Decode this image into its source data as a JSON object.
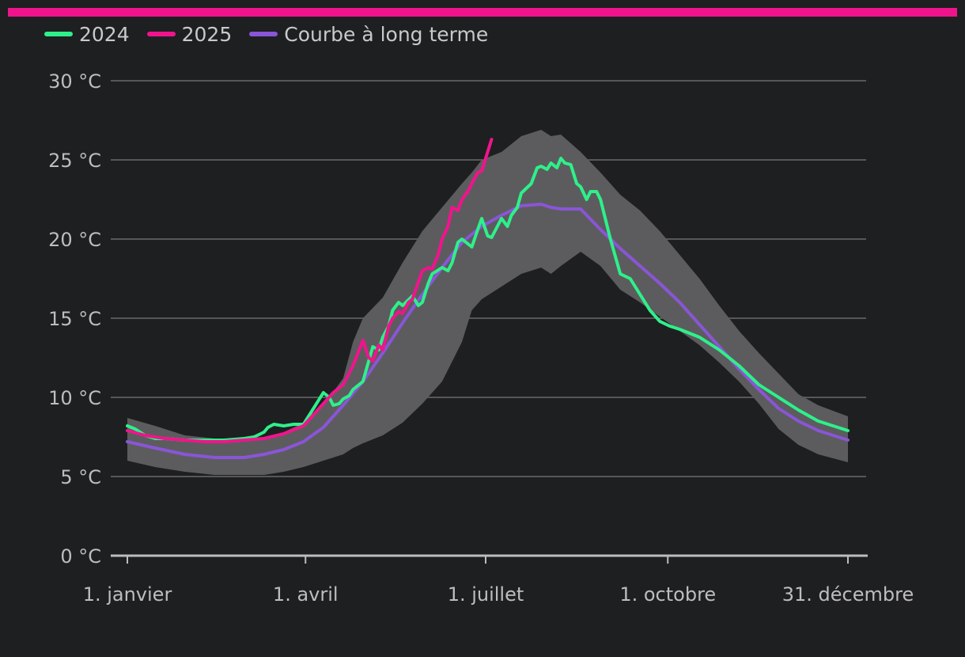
{
  "legend": [
    {
      "label": "2024",
      "color": "#2ef08a"
    },
    {
      "label": "2025",
      "color": "#f0148c"
    },
    {
      "label": "Courbe à long terme",
      "color": "#8a55d6"
    }
  ],
  "colors": {
    "accent": "#f0148c",
    "band": "#5c5c5e",
    "grid": "#6a6a6c",
    "axis": "#bdbdbd"
  },
  "chart_data": {
    "type": "line",
    "x_unit": "day of year",
    "xlim": [
      1,
      365
    ],
    "ylim": [
      0,
      30
    ],
    "y_ticks": [
      0,
      5,
      10,
      15,
      20,
      25,
      30
    ],
    "y_tick_labels": [
      "0 °C",
      "5 °C",
      "10 °C",
      "15 °C",
      "20 °C",
      "25 °C",
      "30 °C"
    ],
    "x_ticks": [
      1,
      91,
      182,
      274,
      365
    ],
    "x_tick_labels": [
      "1. janvier",
      "1. avril",
      "1. juillet",
      "1. octobre",
      "31. décembre"
    ],
    "grid": true,
    "legend_position": "top-left",
    "band": {
      "x": [
        1,
        15,
        30,
        45,
        60,
        70,
        80,
        90,
        100,
        110,
        115,
        120,
        130,
        140,
        150,
        160,
        170,
        175,
        180,
        190,
        200,
        210,
        215,
        220,
        230,
        240,
        250,
        260,
        270,
        280,
        290,
        300,
        310,
        320,
        330,
        340,
        350,
        365
      ],
      "upper": [
        8.7,
        8.2,
        7.6,
        7.4,
        7.4,
        7.5,
        7.8,
        8.4,
        9.5,
        11.2,
        13.5,
        15.0,
        16.3,
        18.5,
        20.5,
        22.0,
        23.5,
        24.2,
        25.0,
        25.5,
        26.5,
        26.9,
        26.5,
        26.6,
        25.5,
        24.2,
        22.8,
        21.8,
        20.5,
        19.0,
        17.5,
        15.8,
        14.2,
        12.8,
        11.5,
        10.2,
        9.5,
        8.8
      ],
      "lower": [
        6.0,
        5.6,
        5.3,
        5.1,
        5.1,
        5.1,
        5.3,
        5.6,
        6.0,
        6.4,
        6.8,
        7.1,
        7.6,
        8.4,
        9.6,
        11.0,
        13.5,
        15.5,
        16.2,
        17.0,
        17.8,
        18.2,
        17.8,
        18.3,
        19.2,
        18.3,
        16.8,
        16.0,
        15.1,
        14.2,
        13.3,
        12.2,
        11.0,
        9.6,
        8.0,
        7.0,
        6.4,
        5.9
      ]
    },
    "series": [
      {
        "name": "2024",
        "color": "#2ef08a",
        "x": [
          1,
          5,
          10,
          15,
          20,
          30,
          40,
          50,
          60,
          65,
          70,
          72,
          75,
          80,
          85,
          90,
          95,
          100,
          103,
          105,
          108,
          110,
          113,
          115,
          118,
          120,
          125,
          128,
          130,
          133,
          135,
          138,
          140,
          145,
          148,
          150,
          153,
          155,
          160,
          163,
          165,
          168,
          170,
          175,
          178,
          180,
          183,
          185,
          190,
          193,
          195,
          198,
          200,
          205,
          208,
          210,
          213,
          215,
          218,
          220,
          222,
          225,
          228,
          230,
          233,
          235,
          238,
          240,
          245,
          250,
          255,
          260,
          265,
          270,
          275,
          280,
          290,
          300,
          310,
          320,
          330,
          340,
          350,
          365
        ],
        "y": [
          8.2,
          8.0,
          7.6,
          7.4,
          7.4,
          7.3,
          7.3,
          7.3,
          7.4,
          7.5,
          7.8,
          8.1,
          8.3,
          8.2,
          8.3,
          8.3,
          9.3,
          10.3,
          10.0,
          9.5,
          9.6,
          9.9,
          10.1,
          10.5,
          10.8,
          11.0,
          13.2,
          13.0,
          13.8,
          14.5,
          15.5,
          16.0,
          15.8,
          16.4,
          15.8,
          16.0,
          17.2,
          17.8,
          18.2,
          18.0,
          18.5,
          19.8,
          20.0,
          19.5,
          20.6,
          21.3,
          20.2,
          20.1,
          21.3,
          20.8,
          21.5,
          22.0,
          22.9,
          23.5,
          24.5,
          24.6,
          24.4,
          24.8,
          24.5,
          25.1,
          24.8,
          24.7,
          23.5,
          23.3,
          22.5,
          23.0,
          23.0,
          22.5,
          20.0,
          17.8,
          17.5,
          16.5,
          15.5,
          14.8,
          14.5,
          14.3,
          13.8,
          13.0,
          12.0,
          10.8,
          10.0,
          9.2,
          8.5,
          7.9
        ]
      },
      {
        "name": "2025",
        "color": "#f0148c",
        "x": [
          1,
          10,
          20,
          30,
          40,
          50,
          60,
          70,
          80,
          90,
          95,
          100,
          105,
          110,
          115,
          120,
          123,
          125,
          128,
          130,
          133,
          135,
          138,
          140,
          143,
          145,
          150,
          153,
          155,
          158,
          160,
          163,
          165,
          168,
          170,
          173,
          175,
          178,
          180,
          183,
          185
        ],
        "y": [
          7.9,
          7.6,
          7.4,
          7.3,
          7.2,
          7.2,
          7.3,
          7.4,
          7.7,
          8.2,
          8.9,
          9.6,
          10.3,
          10.8,
          12.0,
          13.6,
          12.5,
          12.3,
          13.3,
          13.0,
          14.5,
          15.0,
          15.4,
          15.3,
          16.0,
          16.2,
          18.0,
          18.2,
          18.1,
          19.0,
          20.0,
          20.8,
          22.0,
          21.8,
          22.5,
          23.0,
          23.5,
          24.2,
          24.3,
          25.5,
          26.3
        ]
      },
      {
        "name": "Courbe à long terme",
        "color": "#8a55d6",
        "x": [
          1,
          15,
          30,
          45,
          60,
          70,
          80,
          90,
          100,
          110,
          120,
          130,
          140,
          150,
          160,
          170,
          180,
          190,
          200,
          210,
          215,
          220,
          230,
          240,
          250,
          260,
          270,
          280,
          290,
          300,
          310,
          320,
          330,
          340,
          350,
          365
        ],
        "y": [
          7.2,
          6.8,
          6.4,
          6.2,
          6.2,
          6.4,
          6.7,
          7.2,
          8.1,
          9.5,
          11.0,
          12.8,
          14.7,
          16.5,
          18.2,
          19.8,
          20.8,
          21.5,
          22.1,
          22.2,
          22.0,
          21.9,
          21.9,
          20.6,
          19.4,
          18.3,
          17.2,
          16.0,
          14.6,
          13.2,
          11.8,
          10.5,
          9.3,
          8.5,
          7.9,
          7.3
        ]
      }
    ]
  }
}
